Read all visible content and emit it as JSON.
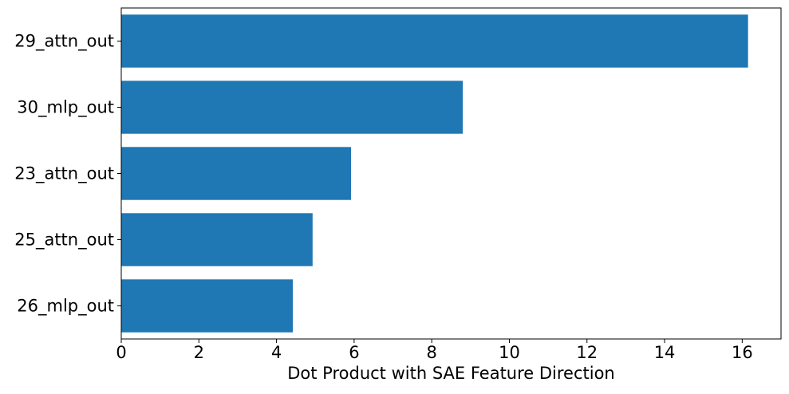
{
  "chart_data": {
    "type": "bar",
    "orientation": "horizontal",
    "title": "",
    "xlabel": "Dot Product with SAE Feature Direction",
    "ylabel": "",
    "categories": [
      "29_attn_out",
      "30_mlp_out",
      "23_attn_out",
      "25_attn_out",
      "26_mlp_out"
    ],
    "values": [
      16.15,
      8.8,
      5.92,
      4.93,
      4.42
    ],
    "xlim": [
      0,
      17
    ],
    "xticks": [
      0,
      2,
      4,
      6,
      8,
      10,
      12,
      14,
      16
    ],
    "xtick_labels": [
      "0",
      "2",
      "4",
      "6",
      "8",
      "10",
      "12",
      "14",
      "16"
    ],
    "grid": false,
    "legend": "none",
    "colors": {
      "bar": "#1f77b4",
      "axis": "#000000",
      "background": "#ffffff"
    }
  }
}
